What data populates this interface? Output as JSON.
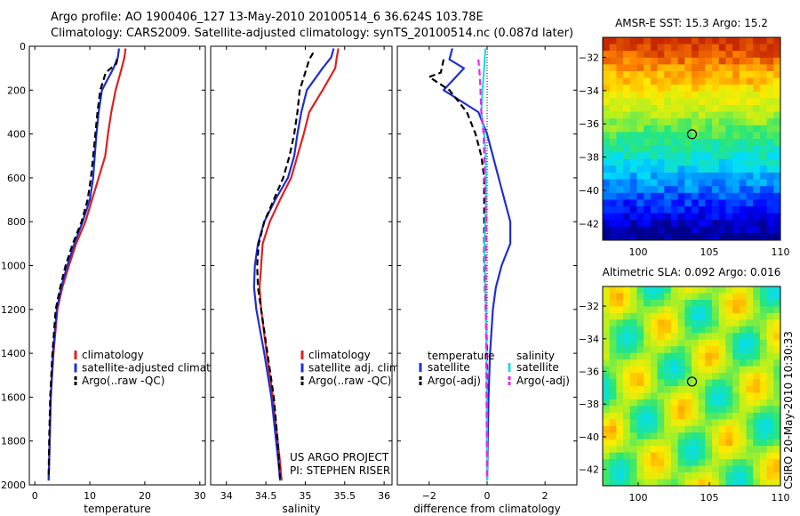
{
  "header": {
    "title_line1": "Argo profile: AO 1900406_127 13-May-2010 20100514_6 36.624S 103.78E",
    "title_line2": "Climatology: CARS2009. Satellite-adjusted climatology: synTS_20100514.nc (0.087d later)"
  },
  "side_label": "CSIRO 20-May-2010 10:30:33",
  "colors": {
    "climatology": "#e02020",
    "satellite": "#1f2fd0",
    "argo": "#000000",
    "salinity_satellite": "#22dddd",
    "salinity_argo": "#ee22ee"
  },
  "chart_data": [
    {
      "id": "temperature",
      "type": "line",
      "xlabel": "temperature",
      "ylabel": "",
      "xlim": [
        -1,
        31
      ],
      "ylim": [
        2000,
        0
      ],
      "xticks": [
        0,
        10,
        20,
        30
      ],
      "yticks": [
        0,
        200,
        400,
        600,
        800,
        1000,
        1200,
        1400,
        1600,
        1800,
        2000
      ],
      "series": [
        {
          "name": "climatology",
          "style": "solid",
          "color": "#e02020",
          "x": [
            16.5,
            16.3,
            15.8,
            14.7,
            13.9,
            13.3,
            12.8,
            11.6,
            10.4,
            9.2,
            7.5,
            6.2,
            5.0,
            4.1,
            3.4,
            2.9,
            2.7,
            2.6,
            2.5
          ],
          "y": [
            10,
            50,
            100,
            200,
            300,
            400,
            500,
            600,
            700,
            800,
            900,
            1000,
            1100,
            1200,
            1400,
            1600,
            1800,
            1900,
            1980
          ]
        },
        {
          "name": "satellite-adjusted climatology",
          "style": "solid",
          "color": "#1f2fd0",
          "x": [
            15.3,
            15.1,
            14.3,
            12.2,
            11.6,
            11.2,
            10.9,
            10.6,
            10.0,
            8.7,
            7.2,
            5.9,
            4.8,
            4.0,
            3.3,
            2.9,
            2.7,
            2.6,
            2.5
          ],
          "y": [
            10,
            50,
            100,
            200,
            300,
            400,
            500,
            600,
            700,
            800,
            900,
            1000,
            1100,
            1200,
            1400,
            1600,
            1800,
            1900,
            1980
          ]
        },
        {
          "name": "Argo(..raw -QC)",
          "style": "dashed",
          "color": "#000000",
          "x": [
            15.0,
            14.8,
            12.9,
            11.9,
            11.4,
            11.0,
            10.6,
            10.2,
            9.6,
            8.5,
            6.9,
            5.6,
            4.6,
            3.8,
            3.2,
            2.8,
            2.6,
            2.5
          ],
          "y": [
            60,
            80,
            120,
            200,
            300,
            400,
            500,
            600,
            700,
            800,
            900,
            1000,
            1100,
            1200,
            1400,
            1600,
            1800,
            1970
          ]
        }
      ],
      "legend": {
        "placement": "bottom-center",
        "entries": [
          "climatology",
          "satellite-adjusted climatology",
          "Argo(..raw -QC)"
        ]
      }
    },
    {
      "id": "salinity",
      "type": "line",
      "xlabel": "salinity",
      "ylabel": "",
      "xlim": [
        33.8,
        36.1
      ],
      "ylim": [
        2000,
        0
      ],
      "xticks": [
        34,
        34.5,
        35,
        35.5,
        36
      ],
      "xticklabels": [
        "34",
        "34.5",
        "35",
        "35.5",
        "36"
      ],
      "yticks": [
        0,
        200,
        400,
        600,
        800,
        1000,
        1200,
        1400,
        1600,
        1800,
        2000
      ],
      "series": [
        {
          "name": "climatology",
          "style": "solid",
          "color": "#e02020",
          "x": [
            35.42,
            35.4,
            35.38,
            35.22,
            35.05,
            34.98,
            34.9,
            34.82,
            34.68,
            34.55,
            34.46,
            34.44,
            34.42,
            34.44,
            34.51,
            34.59,
            34.65,
            34.68,
            34.7
          ],
          "y": [
            10,
            50,
            100,
            200,
            300,
            400,
            500,
            600,
            700,
            800,
            900,
            1000,
            1100,
            1200,
            1400,
            1600,
            1800,
            1900,
            1980
          ]
        },
        {
          "name": "satellite adj. clim.",
          "style": "solid",
          "color": "#1f2fd0",
          "x": [
            35.36,
            35.33,
            35.22,
            35.02,
            34.95,
            34.9,
            34.86,
            34.78,
            34.62,
            34.48,
            34.4,
            34.36,
            34.35,
            34.38,
            34.48,
            34.57,
            34.63,
            34.66,
            34.68
          ],
          "y": [
            10,
            50,
            100,
            200,
            300,
            400,
            500,
            600,
            700,
            800,
            900,
            1000,
            1100,
            1200,
            1400,
            1600,
            1800,
            1900,
            1980
          ]
        },
        {
          "name": "Argo(..raw -QC)",
          "style": "dashed",
          "color": "#000000",
          "x": [
            35.1,
            35.05,
            35.0,
            34.93,
            34.9,
            34.86,
            34.8,
            34.72,
            34.6,
            34.48,
            34.41,
            34.39,
            34.4,
            34.44,
            34.52,
            34.6,
            34.65,
            34.68
          ],
          "y": [
            30,
            60,
            120,
            200,
            300,
            400,
            500,
            600,
            700,
            800,
            900,
            1000,
            1100,
            1200,
            1400,
            1600,
            1800,
            1970
          ]
        }
      ],
      "legend": {
        "placement": "bottom-right",
        "entries": [
          "climatology",
          "satellite adj. clim.",
          "Argo(..raw -QC)"
        ]
      },
      "annotations": [
        "US ARGO PROJECT",
        "PI: STEPHEN RISER"
      ]
    },
    {
      "id": "difference",
      "type": "line",
      "xlabel": "difference from climatology",
      "ylabel": "",
      "xlim": [
        -3.1,
        3.1
      ],
      "ylim": [
        2000,
        0
      ],
      "xticks": [
        -2,
        0,
        2
      ],
      "yticks": [
        0,
        200,
        400,
        600,
        800,
        1000,
        1200,
        1400,
        1600,
        1800,
        2000
      ],
      "zero_line": true,
      "series": [
        {
          "name": "satellite",
          "group": "temperature",
          "style": "solid",
          "color": "#1f2fd0",
          "x": [
            -1.2,
            -1.3,
            -0.8,
            -1.5,
            -0.3,
            0.0,
            0.2,
            0.4,
            0.6,
            0.8,
            0.8,
            0.5,
            0.3,
            0.2,
            0.1,
            0.05,
            0.02,
            0.0
          ],
          "y": [
            10,
            60,
            100,
            200,
            300,
            400,
            500,
            600,
            700,
            800,
            900,
            1000,
            1100,
            1200,
            1400,
            1600,
            1800,
            1980
          ]
        },
        {
          "name": "Argo(-adj)",
          "group": "temperature",
          "style": "dashed",
          "color": "#000000",
          "x": [
            -1.5,
            -1.6,
            -2.0,
            -1.3,
            -0.7,
            -0.4,
            -0.2,
            -0.1,
            -0.1,
            -0.1,
            -0.1,
            -0.1,
            -0.05,
            0.0,
            0.0,
            0.0
          ],
          "y": [
            60,
            120,
            140,
            200,
            300,
            400,
            500,
            600,
            700,
            800,
            900,
            1000,
            1200,
            1400,
            1600,
            1970
          ]
        },
        {
          "name": "satellite",
          "group": "salinity",
          "style": "solid",
          "color": "#22dddd",
          "x": [
            -0.06,
            -0.1,
            -0.16,
            -0.2,
            -0.1,
            -0.05,
            -0.04,
            -0.04,
            -0.06,
            -0.09,
            -0.08,
            -0.06,
            -0.04,
            -0.02,
            -0.01,
            0.0
          ],
          "y": [
            10,
            100,
            200,
            300,
            400,
            500,
            600,
            700,
            800,
            900,
            1000,
            1100,
            1200,
            1400,
            1600,
            1980
          ]
        },
        {
          "name": "Argo(-adj)",
          "group": "salinity",
          "style": "dashed",
          "color": "#ee22ee",
          "x": [
            -0.3,
            -0.25,
            -0.2,
            -0.12,
            -0.1,
            -0.08,
            -0.05,
            -0.03,
            -0.04,
            -0.05,
            -0.04,
            -0.03,
            -0.02,
            -0.01,
            0.0
          ],
          "y": [
            60,
            140,
            300,
            400,
            500,
            600,
            700,
            800,
            900,
            1000,
            1200,
            1400,
            1600,
            1800,
            1970
          ]
        }
      ],
      "legend": {
        "placement": "bottom-center",
        "groups": [
          {
            "title": "temperature",
            "entries": [
              "satellite",
              "Argo(-adj)"
            ]
          },
          {
            "title": "salinity",
            "entries": [
              "satellite",
              "Argo(-adj)"
            ]
          }
        ]
      }
    },
    {
      "id": "amsre_sst_map",
      "type": "heatmap",
      "title": "AMSR-E SST: 15.3 Argo: 15.2",
      "xlim": [
        97.5,
        110
      ],
      "ylim": [
        -43,
        -30.8
      ],
      "xticks": [
        100,
        105,
        110
      ],
      "yticks": [
        -42,
        -40,
        -38,
        -36,
        -34,
        -32
      ],
      "marker": {
        "lon": 103.78,
        "lat": -36.624
      }
    },
    {
      "id": "altimetric_sla_map",
      "type": "heatmap",
      "title": "Altimetric SLA: 0.092 Argo: 0.016",
      "xlim": [
        97.5,
        110
      ],
      "ylim": [
        -43,
        -30.8
      ],
      "xticks": [
        100,
        105,
        110
      ],
      "yticks": [
        -42,
        -40,
        -38,
        -36,
        -34,
        -32
      ],
      "marker": {
        "lon": 103.78,
        "lat": -36.624
      }
    }
  ]
}
